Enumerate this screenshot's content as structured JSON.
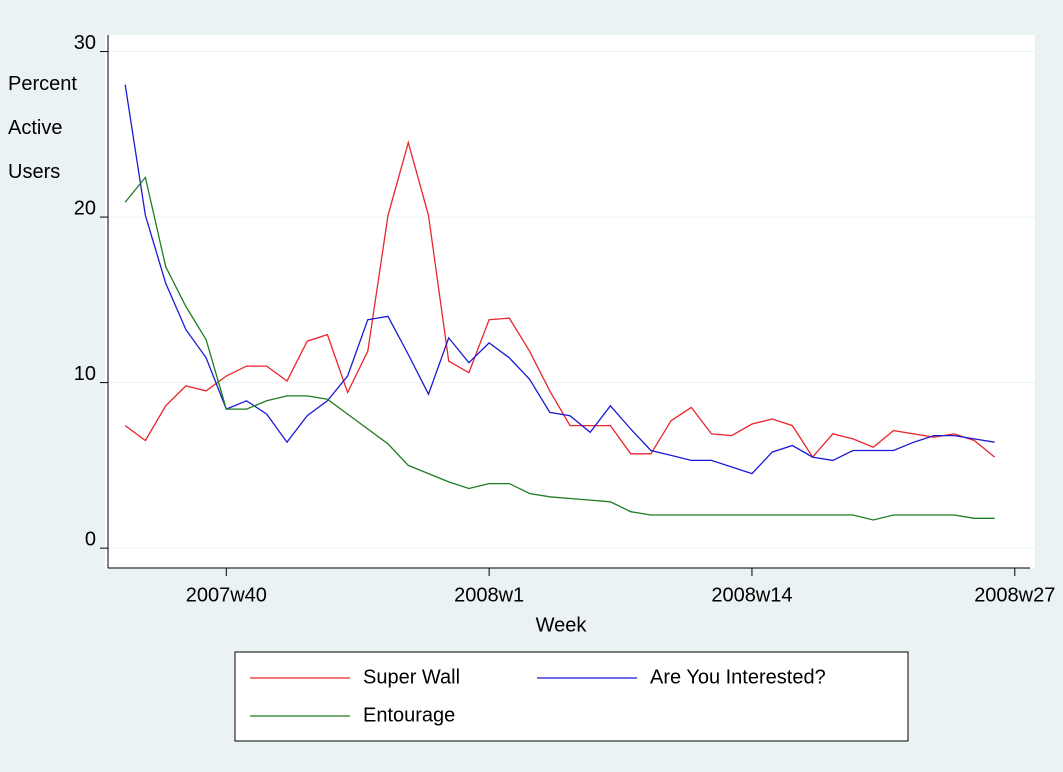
{
  "chart_data": {
    "type": "line",
    "y_label": "Percent Active Users",
    "x_label": "Week",
    "x": [
      "2007w35",
      "2007w36",
      "2007w37",
      "2007w38",
      "2007w39",
      "2007w40",
      "2007w41",
      "2007w42",
      "2007w43",
      "2007w44",
      "2007w45",
      "2007w46",
      "2007w47",
      "2007w48",
      "2007w49",
      "2007w50",
      "2007w51",
      "2007w52",
      "2008w1",
      "2008w2",
      "2008w3",
      "2008w4",
      "2008w5",
      "2008w6",
      "2008w7",
      "2008w8",
      "2008w9",
      "2008w10",
      "2008w11",
      "2008w12",
      "2008w13",
      "2008w14",
      "2008w15",
      "2008w16",
      "2008w17",
      "2008w18",
      "2008w19",
      "2008w20",
      "2008w21",
      "2008w22",
      "2008w23",
      "2008w24",
      "2008w25",
      "2008w26"
    ],
    "series": [
      {
        "name": "Super Wall",
        "color": "#e8262b",
        "values": [
          7.4,
          6.5,
          8.6,
          9.8,
          9.5,
          10.4,
          11.0,
          11.0,
          10.1,
          12.5,
          12.9,
          9.4,
          11.9,
          20.1,
          24.5,
          20.1,
          11.3,
          10.6,
          13.8,
          13.9,
          11.9,
          9.5,
          7.4,
          7.4,
          7.4,
          5.7,
          5.7,
          7.7,
          8.5,
          6.9,
          6.8,
          7.5,
          7.8,
          7.4,
          5.5,
          6.9,
          6.6,
          6.1,
          7.1,
          6.9,
          6.7,
          6.9,
          6.5,
          5.5
        ]
      },
      {
        "name": "Are You Interested?",
        "color": "#1a1ad6",
        "values": [
          28.0,
          20.1,
          16.0,
          13.2,
          11.5,
          8.4,
          8.9,
          8.1,
          6.4,
          8.0,
          8.9,
          10.4,
          13.8,
          14.0,
          11.7,
          9.3,
          12.7,
          11.2,
          12.4,
          11.5,
          10.2,
          8.2,
          8.0,
          7.0,
          8.6,
          7.2,
          5.9,
          5.6,
          5.3,
          5.3,
          4.9,
          4.5,
          5.8,
          6.2,
          5.5,
          5.3,
          5.9,
          5.9,
          5.9,
          6.4,
          6.8,
          6.8,
          6.6,
          6.4
        ]
      },
      {
        "name": "Entourage",
        "color": "#1e7d1e",
        "values": [
          20.9,
          22.4,
          17.0,
          14.6,
          12.6,
          8.4,
          8.4,
          8.9,
          9.2,
          9.2,
          9.0,
          8.1,
          7.2,
          6.3,
          5.0,
          4.5,
          4.0,
          3.6,
          3.9,
          3.9,
          3.3,
          3.1,
          3.0,
          2.9,
          2.8,
          2.2,
          2.0,
          2.0,
          2.0,
          2.0,
          2.0,
          2.0,
          2.0,
          2.0,
          2.0,
          2.0,
          2.0,
          1.7,
          2.0,
          2.0,
          2.0,
          2.0,
          1.8,
          1.8
        ]
      }
    ],
    "xlim": [
      "2007w34",
      "2008w28"
    ],
    "xticks": [
      "2007w40",
      "2008w1",
      "2008w14",
      "2008w27"
    ],
    "ylim": [
      -1.2,
      31
    ],
    "yticks": [
      0,
      10,
      20,
      30
    ],
    "grid": true,
    "legend": "bottom"
  }
}
